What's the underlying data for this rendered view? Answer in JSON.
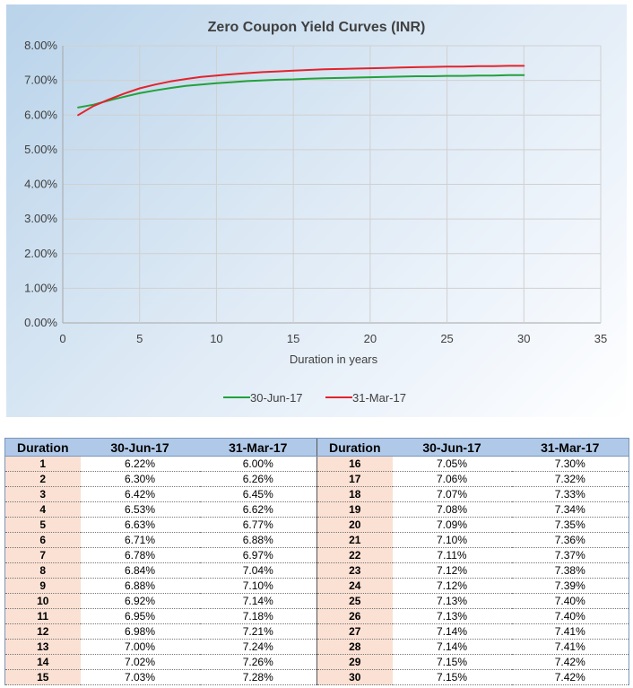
{
  "chart_data": {
    "type": "line",
    "title": "Zero Coupon Yield Curves (INR)",
    "xlabel": "Duration in years",
    "ylabel": "",
    "xlim": [
      0,
      35
    ],
    "ylim": [
      0,
      8
    ],
    "x_ticks": [
      "0",
      "5",
      "10",
      "15",
      "20",
      "25",
      "30",
      "35"
    ],
    "y_ticks": [
      "0.00%",
      "1.00%",
      "2.00%",
      "3.00%",
      "4.00%",
      "5.00%",
      "6.00%",
      "7.00%",
      "8.00%"
    ],
    "grid": true,
    "legend_position": "bottom",
    "x": [
      1,
      2,
      3,
      4,
      5,
      6,
      7,
      8,
      9,
      10,
      11,
      12,
      13,
      14,
      15,
      16,
      17,
      18,
      19,
      20,
      21,
      22,
      23,
      24,
      25,
      26,
      27,
      28,
      29,
      30
    ],
    "series": [
      {
        "name": "30-Jun-17",
        "color": "#22a13a",
        "values": [
          6.22,
          6.3,
          6.42,
          6.53,
          6.63,
          6.71,
          6.78,
          6.84,
          6.88,
          6.92,
          6.95,
          6.98,
          7.0,
          7.02,
          7.03,
          7.05,
          7.06,
          7.07,
          7.08,
          7.09,
          7.1,
          7.11,
          7.12,
          7.12,
          7.13,
          7.13,
          7.14,
          7.14,
          7.15,
          7.15
        ]
      },
      {
        "name": "31-Mar-17",
        "color": "#e3232c",
        "values": [
          6.0,
          6.26,
          6.45,
          6.62,
          6.77,
          6.88,
          6.97,
          7.04,
          7.1,
          7.14,
          7.18,
          7.21,
          7.24,
          7.26,
          7.28,
          7.3,
          7.32,
          7.33,
          7.34,
          7.35,
          7.36,
          7.37,
          7.38,
          7.39,
          7.4,
          7.4,
          7.41,
          7.41,
          7.42,
          7.42
        ]
      }
    ]
  },
  "table": {
    "headers": [
      "Duration",
      "30-Jun-17",
      "31-Mar-17",
      "Duration",
      "30-Jun-17",
      "31-Mar-17"
    ],
    "rows": [
      [
        "1",
        "6.22%",
        "6.00%",
        "16",
        "7.05%",
        "7.30%"
      ],
      [
        "2",
        "6.30%",
        "6.26%",
        "17",
        "7.06%",
        "7.32%"
      ],
      [
        "3",
        "6.42%",
        "6.45%",
        "18",
        "7.07%",
        "7.33%"
      ],
      [
        "4",
        "6.53%",
        "6.62%",
        "19",
        "7.08%",
        "7.34%"
      ],
      [
        "5",
        "6.63%",
        "6.77%",
        "20",
        "7.09%",
        "7.35%"
      ],
      [
        "6",
        "6.71%",
        "6.88%",
        "21",
        "7.10%",
        "7.36%"
      ],
      [
        "7",
        "6.78%",
        "6.97%",
        "22",
        "7.11%",
        "7.37%"
      ],
      [
        "8",
        "6.84%",
        "7.04%",
        "23",
        "7.12%",
        "7.38%"
      ],
      [
        "9",
        "6.88%",
        "7.10%",
        "24",
        "7.12%",
        "7.39%"
      ],
      [
        "10",
        "6.92%",
        "7.14%",
        "25",
        "7.13%",
        "7.40%"
      ],
      [
        "11",
        "6.95%",
        "7.18%",
        "26",
        "7.13%",
        "7.40%"
      ],
      [
        "12",
        "6.98%",
        "7.21%",
        "27",
        "7.14%",
        "7.41%"
      ],
      [
        "13",
        "7.00%",
        "7.24%",
        "28",
        "7.14%",
        "7.41%"
      ],
      [
        "14",
        "7.02%",
        "7.26%",
        "29",
        "7.15%",
        "7.42%"
      ],
      [
        "15",
        "7.03%",
        "7.28%",
        "30",
        "7.15%",
        "7.42%"
      ]
    ]
  }
}
